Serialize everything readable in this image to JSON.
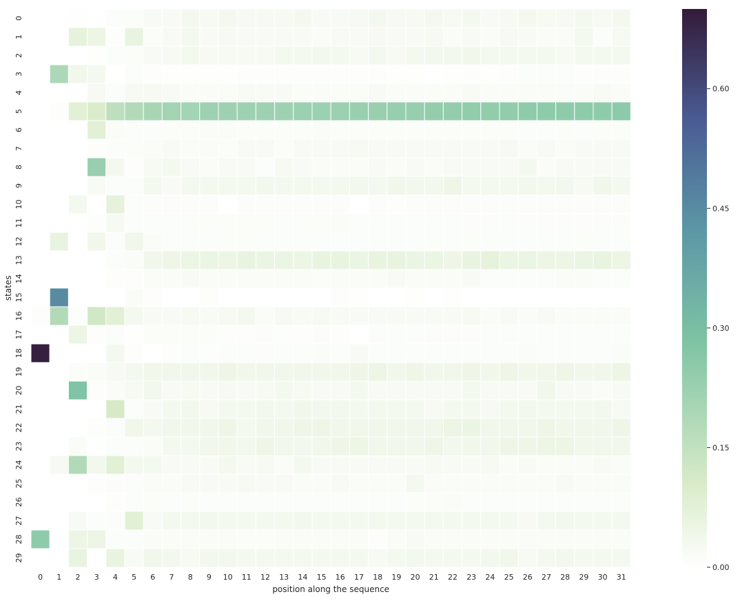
{
  "chart_data": {
    "type": "heatmap",
    "title": "",
    "xlabel": "position along the sequence",
    "ylabel": "states",
    "x_categories": [
      "0",
      "1",
      "2",
      "3",
      "4",
      "5",
      "6",
      "7",
      "8",
      "9",
      "10",
      "11",
      "12",
      "13",
      "14",
      "15",
      "16",
      "17",
      "18",
      "19",
      "20",
      "21",
      "22",
      "23",
      "24",
      "25",
      "26",
      "27",
      "28",
      "29",
      "30",
      "31"
    ],
    "y_categories": [
      "0",
      "1",
      "2",
      "3",
      "4",
      "5",
      "6",
      "7",
      "8",
      "9",
      "10",
      "11",
      "12",
      "13",
      "14",
      "15",
      "16",
      "17",
      "18",
      "19",
      "20",
      "21",
      "22",
      "23",
      "24",
      "25",
      "26",
      "27",
      "28",
      "29"
    ],
    "value_range": [
      0,
      0.7
    ],
    "colorbar": {
      "ticks": [
        0.0,
        0.15,
        0.3,
        0.45,
        0.6
      ],
      "tick_labels": [
        "0.00",
        "0.15",
        "0.30",
        "0.45",
        "0.60"
      ],
      "colormap": "cubehelix light (white - green - teal - blue - dark purple)",
      "colors": [
        "#ffffff",
        "#d9ebc9",
        "#7fc4a4",
        "#5c98a6",
        "#4a5c94",
        "#331b38"
      ],
      "position": "right"
    },
    "values": [
      [
        0.0,
        0.0,
        0.003,
        0.0,
        0.01,
        0.012,
        0.02,
        0.02,
        0.03,
        0.025,
        0.03,
        0.025,
        0.025,
        0.025,
        0.03,
        0.02,
        0.02,
        0.025,
        0.03,
        0.025,
        0.025,
        0.03,
        0.025,
        0.03,
        0.02,
        0.025,
        0.03,
        0.025,
        0.025,
        0.03,
        0.025,
        0.03
      ],
      [
        0.0,
        0.0,
        0.07,
        0.05,
        0.005,
        0.06,
        0.012,
        0.02,
        0.03,
        0.02,
        0.025,
        0.02,
        0.02,
        0.02,
        0.02,
        0.015,
        0.02,
        0.02,
        0.025,
        0.02,
        0.02,
        0.025,
        0.015,
        0.02,
        0.015,
        0.025,
        0.02,
        0.015,
        0.015,
        0.03,
        0.01,
        0.025
      ],
      [
        0.0,
        0.0,
        0.0,
        0.003,
        0.01,
        0.012,
        0.02,
        0.025,
        0.03,
        0.025,
        0.025,
        0.025,
        0.025,
        0.03,
        0.03,
        0.035,
        0.03,
        0.025,
        0.03,
        0.025,
        0.03,
        0.035,
        0.035,
        0.04,
        0.03,
        0.03,
        0.03,
        0.03,
        0.025,
        0.03,
        0.03,
        0.03
      ],
      [
        0.0,
        0.19,
        0.04,
        0.03,
        0.0,
        0.01,
        0.005,
        0.003,
        0.003,
        0.003,
        0.003,
        0.005,
        0.005,
        0.005,
        0.005,
        0.005,
        0.005,
        0.005,
        0.005,
        0.003,
        0.003,
        0.0,
        0.003,
        0.005,
        0.003,
        0.005,
        0.01,
        0.01,
        0.01,
        0.005,
        0.005,
        0.005
      ],
      [
        0.0,
        0.0,
        0.0,
        0.025,
        0.01,
        0.025,
        0.025,
        0.02,
        0.015,
        0.015,
        0.015,
        0.02,
        0.02,
        0.02,
        0.015,
        0.015,
        0.015,
        0.015,
        0.02,
        0.015,
        0.015,
        0.015,
        0.015,
        0.02,
        0.015,
        0.015,
        0.015,
        0.015,
        0.015,
        0.015,
        0.02,
        0.015
      ],
      [
        0.0,
        0.005,
        0.08,
        0.1,
        0.16,
        0.18,
        0.2,
        0.21,
        0.21,
        0.22,
        0.22,
        0.22,
        0.22,
        0.22,
        0.225,
        0.225,
        0.225,
        0.23,
        0.23,
        0.235,
        0.235,
        0.24,
        0.24,
        0.245,
        0.245,
        0.245,
        0.25,
        0.25,
        0.25,
        0.25,
        0.25,
        0.255
      ],
      [
        0.0,
        0.0,
        0.0,
        0.08,
        0.015,
        0.01,
        0.01,
        0.012,
        0.012,
        0.015,
        0.015,
        0.012,
        0.012,
        0.012,
        0.012,
        0.015,
        0.012,
        0.012,
        0.012,
        0.012,
        0.012,
        0.012,
        0.012,
        0.012,
        0.012,
        0.012,
        0.01,
        0.01,
        0.012,
        0.01,
        0.012,
        0.012
      ],
      [
        0.0,
        0.0,
        0.002,
        0.005,
        0.01,
        0.012,
        0.015,
        0.02,
        0.015,
        0.015,
        0.012,
        0.02,
        0.02,
        0.012,
        0.02,
        0.02,
        0.02,
        0.025,
        0.02,
        0.02,
        0.02,
        0.02,
        0.02,
        0.02,
        0.02,
        0.025,
        0.015,
        0.02,
        0.015,
        0.02,
        0.02,
        0.02
      ],
      [
        0.0,
        0.0,
        0.0,
        0.23,
        0.03,
        0.005,
        0.025,
        0.03,
        0.02,
        0.015,
        0.02,
        0.02,
        0.01,
        0.025,
        0.02,
        0.015,
        0.015,
        0.015,
        0.02,
        0.015,
        0.02,
        0.015,
        0.02,
        0.02,
        0.02,
        0.02,
        0.03,
        0.015,
        0.02,
        0.02,
        0.02,
        0.02
      ],
      [
        0.0,
        0.0,
        0.0,
        0.02,
        0.01,
        0.01,
        0.03,
        0.02,
        0.03,
        0.03,
        0.03,
        0.03,
        0.035,
        0.03,
        0.03,
        0.03,
        0.03,
        0.035,
        0.03,
        0.04,
        0.035,
        0.035,
        0.045,
        0.03,
        0.03,
        0.03,
        0.035,
        0.03,
        0.035,
        0.025,
        0.04,
        0.03
      ],
      [
        0.0,
        0.0,
        0.03,
        0.0,
        0.07,
        0.01,
        0.008,
        0.008,
        0.008,
        0.008,
        0.0,
        0.008,
        0.008,
        0.008,
        0.008,
        0.008,
        0.008,
        0.0,
        0.008,
        0.005,
        0.008,
        0.008,
        0.008,
        0.008,
        0.008,
        0.008,
        0.008,
        0.008,
        0.008,
        0.008,
        0.008,
        0.008
      ],
      [
        0.0,
        0.0,
        0.0,
        0.005,
        0.025,
        0.01,
        0.01,
        0.01,
        0.012,
        0.012,
        0.012,
        0.012,
        0.012,
        0.01,
        0.012,
        0.012,
        0.015,
        0.01,
        0.01,
        0.01,
        0.01,
        0.01,
        0.01,
        0.008,
        0.008,
        0.01,
        0.008,
        0.008,
        0.008,
        0.008,
        0.008,
        0.008
      ],
      [
        0.0,
        0.06,
        0.0,
        0.04,
        0.008,
        0.04,
        0.015,
        0.01,
        0.01,
        0.01,
        0.012,
        0.012,
        0.01,
        0.01,
        0.01,
        0.01,
        0.01,
        0.01,
        0.01,
        0.01,
        0.01,
        0.012,
        0.01,
        0.012,
        0.01,
        0.01,
        0.01,
        0.01,
        0.01,
        0.012,
        0.01,
        0.01
      ],
      [
        0.0,
        0.0,
        0.0,
        0.0,
        0.01,
        0.015,
        0.04,
        0.045,
        0.05,
        0.055,
        0.05,
        0.06,
        0.055,
        0.055,
        0.05,
        0.06,
        0.06,
        0.055,
        0.06,
        0.06,
        0.055,
        0.055,
        0.045,
        0.06,
        0.07,
        0.055,
        0.055,
        0.05,
        0.05,
        0.055,
        0.06,
        0.05
      ],
      [
        0.0,
        0.0,
        0.0,
        0.0,
        0.005,
        0.005,
        0.015,
        0.015,
        0.02,
        0.015,
        0.015,
        0.015,
        0.015,
        0.015,
        0.015,
        0.012,
        0.015,
        0.015,
        0.015,
        0.02,
        0.015,
        0.015,
        0.015,
        0.02,
        0.01,
        0.01,
        0.01,
        0.01,
        0.015,
        0.015,
        0.01,
        0.01
      ],
      [
        0.0,
        0.45,
        0.0,
        0.0,
        0.0,
        0.015,
        0.005,
        0.0,
        0.0,
        0.005,
        0.0,
        0.0,
        0.002,
        0.0,
        0.0,
        0.0,
        0.005,
        0.003,
        0.0,
        0.0,
        0.003,
        0.0,
        0.003,
        0.0,
        0.0,
        0.0,
        0.0,
        0.0,
        0.0,
        0.0,
        0.0,
        0.0
      ],
      [
        0.005,
        0.18,
        0.005,
        0.12,
        0.08,
        0.03,
        0.02,
        0.02,
        0.025,
        0.02,
        0.025,
        0.03,
        0.015,
        0.025,
        0.02,
        0.025,
        0.02,
        0.02,
        0.02,
        0.02,
        0.02,
        0.02,
        0.02,
        0.025,
        0.015,
        0.02,
        0.015,
        0.02,
        0.015,
        0.015,
        0.015,
        0.015
      ],
      [
        0.0,
        0.0,
        0.05,
        0.005,
        0.01,
        0.003,
        0.012,
        0.012,
        0.012,
        0.012,
        0.005,
        0.005,
        0.008,
        0.005,
        0.005,
        0.008,
        0.005,
        0.0,
        0.008,
        0.01,
        0.008,
        0.008,
        0.008,
        0.008,
        0.01,
        0.008,
        0.01,
        0.01,
        0.01,
        0.01,
        0.01,
        0.01
      ],
      [
        0.69,
        0.0,
        0.0,
        0.0,
        0.03,
        0.005,
        0.0,
        0.005,
        0.01,
        0.005,
        0.01,
        0.01,
        0.008,
        0.01,
        0.01,
        0.015,
        0.01,
        0.02,
        0.01,
        0.01,
        0.01,
        0.01,
        0.01,
        0.01,
        0.01,
        0.01,
        0.015,
        0.01,
        0.01,
        0.01,
        0.01,
        0.015
      ],
      [
        0.0,
        0.0,
        0.01,
        0.015,
        0.025,
        0.03,
        0.04,
        0.04,
        0.04,
        0.04,
        0.045,
        0.04,
        0.04,
        0.04,
        0.04,
        0.04,
        0.04,
        0.045,
        0.05,
        0.04,
        0.045,
        0.04,
        0.04,
        0.045,
        0.04,
        0.045,
        0.04,
        0.04,
        0.045,
        0.04,
        0.04,
        0.05
      ],
      [
        0.0,
        0.0,
        0.28,
        0.005,
        0.015,
        0.025,
        0.035,
        0.02,
        0.025,
        0.02,
        0.025,
        0.02,
        0.025,
        0.03,
        0.025,
        0.02,
        0.02,
        0.03,
        0.02,
        0.02,
        0.02,
        0.02,
        0.02,
        0.03,
        0.02,
        0.02,
        0.02,
        0.04,
        0.02,
        0.02,
        0.015,
        0.02
      ],
      [
        0.0,
        0.0,
        0.0,
        0.0,
        0.11,
        0.01,
        0.02,
        0.03,
        0.035,
        0.025,
        0.03,
        0.03,
        0.035,
        0.03,
        0.04,
        0.035,
        0.035,
        0.03,
        0.03,
        0.03,
        0.03,
        0.025,
        0.03,
        0.03,
        0.025,
        0.03,
        0.035,
        0.03,
        0.03,
        0.03,
        0.035,
        0.025
      ],
      [
        0.0,
        0.0,
        0.0,
        0.005,
        0.01,
        0.04,
        0.03,
        0.04,
        0.04,
        0.04,
        0.045,
        0.03,
        0.04,
        0.04,
        0.045,
        0.045,
        0.04,
        0.04,
        0.04,
        0.04,
        0.04,
        0.04,
        0.05,
        0.055,
        0.04,
        0.04,
        0.04,
        0.045,
        0.04,
        0.04,
        0.04,
        0.045
      ],
      [
        0.0,
        0.0,
        0.015,
        0.0,
        0.01,
        0.01,
        0.015,
        0.03,
        0.03,
        0.04,
        0.04,
        0.035,
        0.045,
        0.04,
        0.035,
        0.04,
        0.045,
        0.05,
        0.04,
        0.04,
        0.04,
        0.045,
        0.035,
        0.04,
        0.04,
        0.045,
        0.045,
        0.05,
        0.05,
        0.04,
        0.04,
        0.04
      ],
      [
        0.0,
        0.025,
        0.18,
        0.035,
        0.08,
        0.03,
        0.03,
        0.02,
        0.02,
        0.02,
        0.03,
        0.02,
        0.025,
        0.015,
        0.03,
        0.02,
        0.02,
        0.02,
        0.02,
        0.02,
        0.02,
        0.025,
        0.02,
        0.02,
        0.025,
        0.015,
        0.02,
        0.015,
        0.015,
        0.015,
        0.02,
        0.015
      ],
      [
        0.0,
        0.0,
        0.0,
        0.005,
        0.008,
        0.01,
        0.015,
        0.015,
        0.02,
        0.02,
        0.02,
        0.025,
        0.02,
        0.02,
        0.015,
        0.015,
        0.02,
        0.015,
        0.015,
        0.015,
        0.03,
        0.015,
        0.015,
        0.015,
        0.015,
        0.015,
        0.015,
        0.015,
        0.02,
        0.015,
        0.015,
        0.015
      ],
      [
        0.0,
        0.0,
        0.0,
        0.0,
        0.005,
        0.01,
        0.012,
        0.01,
        0.012,
        0.01,
        0.01,
        0.01,
        0.01,
        0.01,
        0.01,
        0.01,
        0.01,
        0.01,
        0.01,
        0.01,
        0.012,
        0.012,
        0.015,
        0.01,
        0.01,
        0.01,
        0.01,
        0.01,
        0.01,
        0.01,
        0.01,
        0.01
      ],
      [
        0.0,
        0.0,
        0.02,
        0.01,
        0.01,
        0.08,
        0.02,
        0.03,
        0.03,
        0.035,
        0.03,
        0.03,
        0.03,
        0.03,
        0.035,
        0.03,
        0.03,
        0.03,
        0.03,
        0.03,
        0.03,
        0.03,
        0.03,
        0.03,
        0.03,
        0.03,
        0.025,
        0.03,
        0.035,
        0.03,
        0.03,
        0.03
      ],
      [
        0.25,
        0.0,
        0.05,
        0.05,
        0.01,
        0.01,
        0.015,
        0.015,
        0.015,
        0.015,
        0.015,
        0.012,
        0.012,
        0.015,
        0.015,
        0.015,
        0.015,
        0.015,
        0.005,
        0.015,
        0.02,
        0.015,
        0.015,
        0.015,
        0.015,
        0.015,
        0.015,
        0.015,
        0.015,
        0.015,
        0.015,
        0.015
      ],
      [
        0.0,
        0.0,
        0.06,
        0.0,
        0.06,
        0.02,
        0.04,
        0.035,
        0.025,
        0.035,
        0.035,
        0.03,
        0.03,
        0.03,
        0.03,
        0.03,
        0.03,
        0.03,
        0.025,
        0.03,
        0.035,
        0.03,
        0.03,
        0.03,
        0.035,
        0.04,
        0.025,
        0.03,
        0.035,
        0.03,
        0.03,
        0.03
      ]
    ]
  }
}
